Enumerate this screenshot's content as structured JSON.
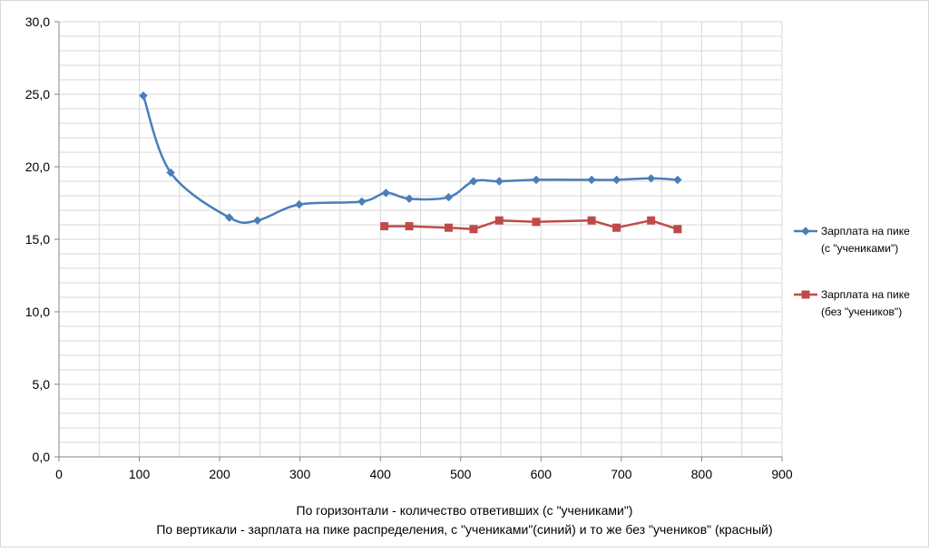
{
  "chart_data": {
    "type": "scatter",
    "title": "",
    "xlabel": "По горизонтали - количество ответивших (с \"учениками\")",
    "ylabel": "По вертикали - зарплата на пике распределения, с \"учениками\"(синий) и то же без \"учеников\" (красный)",
    "xlim": [
      0,
      900
    ],
    "ylim": [
      0,
      30
    ],
    "x_ticks": [
      "0",
      "100",
      "200",
      "300",
      "400",
      "500",
      "600",
      "700",
      "800",
      "900"
    ],
    "y_ticks": [
      "0,0",
      "5,0",
      "10,0",
      "15,0",
      "20,0",
      "25,0",
      "30,0"
    ],
    "grid": true,
    "legend_position": "right",
    "series": [
      {
        "name_line1": "Зарплата на пике",
        "name_line2": "(с \"учениками\")",
        "color": "#4a7ebb",
        "marker": "diamond",
        "smooth": true,
        "points": [
          [
            105,
            24.9
          ],
          [
            139,
            19.6
          ],
          [
            212,
            16.5
          ],
          [
            247,
            16.3
          ],
          [
            299,
            17.4
          ],
          [
            377,
            17.6
          ],
          [
            407,
            18.2
          ],
          [
            436,
            17.8
          ],
          [
            485,
            17.9
          ],
          [
            516,
            19.0
          ],
          [
            548,
            19.0
          ],
          [
            594,
            19.1
          ],
          [
            663,
            19.1
          ],
          [
            694,
            19.1
          ],
          [
            737,
            19.2
          ],
          [
            770,
            19.1
          ]
        ]
      },
      {
        "name_line1": "Зарплата на пике",
        "name_line2": "(без \"учеников\")",
        "color": "#be4b48",
        "marker": "square",
        "smooth": false,
        "points": [
          [
            405,
            15.9
          ],
          [
            436,
            15.9
          ],
          [
            485,
            15.8
          ],
          [
            516,
            15.7
          ],
          [
            548,
            16.3
          ],
          [
            594,
            16.2
          ],
          [
            663,
            16.3
          ],
          [
            694,
            15.8
          ],
          [
            737,
            16.3
          ],
          [
            770,
            15.7
          ]
        ]
      }
    ]
  }
}
